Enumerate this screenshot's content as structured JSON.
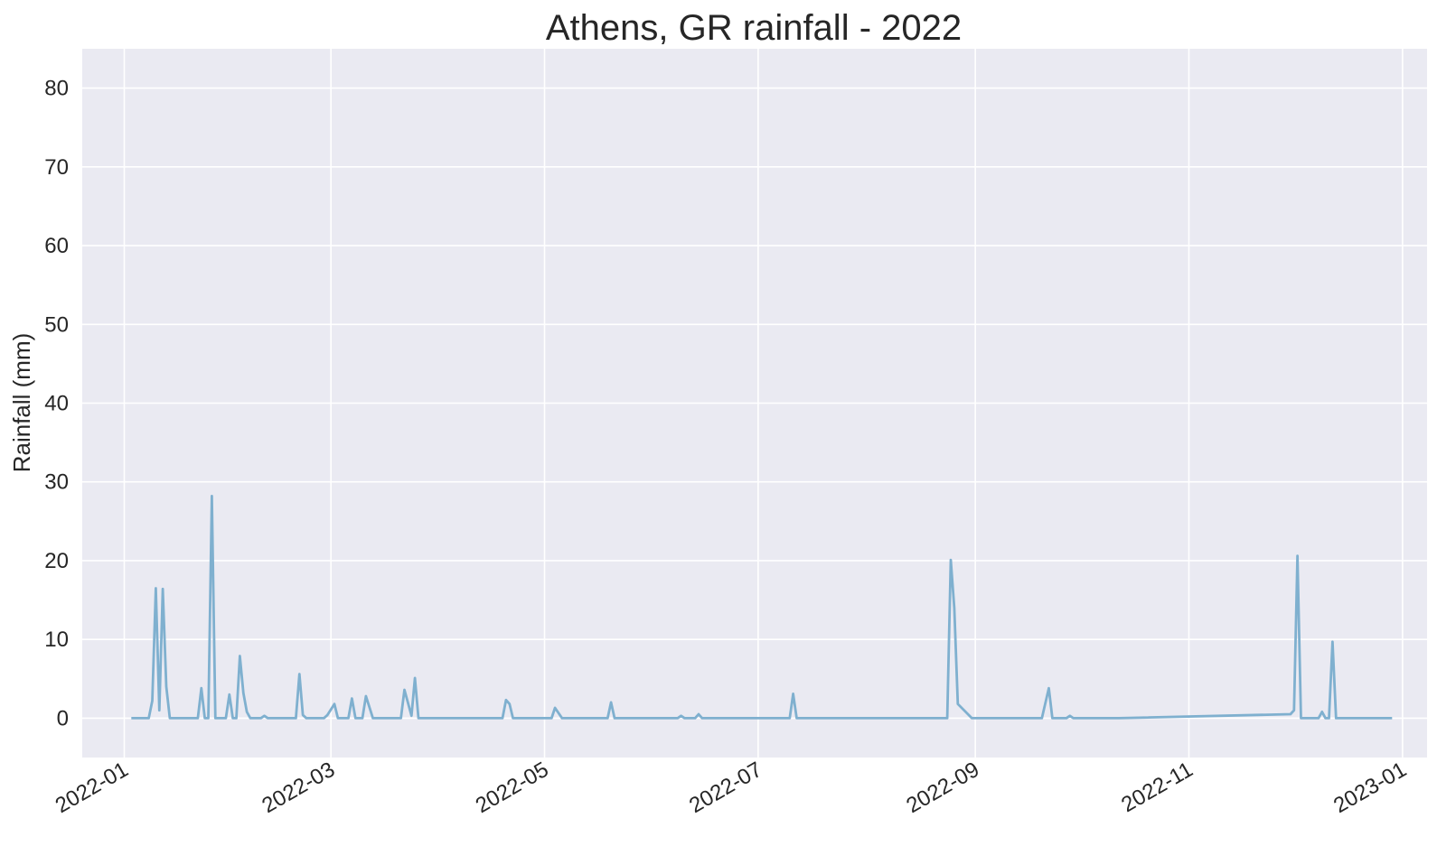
{
  "chart_data": {
    "type": "line",
    "title": "Athens, GR rainfall - 2022",
    "xlabel": "",
    "ylabel": "Rainfall (mm)",
    "xlim": [
      "2021-12-20",
      "2023-01-08"
    ],
    "ylim": [
      -5,
      85
    ],
    "x_ticks": [
      "2022-01",
      "2022-03",
      "2022-05",
      "2022-07",
      "2022-09",
      "2022-11",
      "2023-01"
    ],
    "y_ticks": [
      0,
      10,
      20,
      30,
      40,
      50,
      60,
      70,
      80
    ],
    "grid": true,
    "line_color": "#7fb0cf",
    "background_color": "#eaeaf2",
    "series": [
      {
        "x": [
          "2022-01-03",
          "2022-01-08",
          "2022-01-09",
          "2022-01-10",
          "2022-01-11",
          "2022-01-12",
          "2022-01-13",
          "2022-01-14",
          "2022-01-22",
          "2022-01-23",
          "2022-01-24",
          "2022-01-25",
          "2022-01-26",
          "2022-01-27",
          "2022-01-30",
          "2022-01-31",
          "2022-02-01",
          "2022-02-02",
          "2022-02-03",
          "2022-02-04",
          "2022-02-05",
          "2022-02-06",
          "2022-02-09",
          "2022-02-10",
          "2022-02-11",
          "2022-02-19",
          "2022-02-20",
          "2022-02-21",
          "2022-02-22",
          "2022-02-27",
          "2022-02-28",
          "2022-03-02",
          "2022-03-03",
          "2022-03-06",
          "2022-03-07",
          "2022-03-08",
          "2022-03-10",
          "2022-03-11",
          "2022-03-13",
          "2022-03-21",
          "2022-03-22",
          "2022-03-24",
          "2022-03-25",
          "2022-03-26",
          "2022-04-19",
          "2022-04-20",
          "2022-04-21",
          "2022-04-22",
          "2022-05-03",
          "2022-05-04",
          "2022-05-06",
          "2022-05-19",
          "2022-05-20",
          "2022-05-21",
          "2022-06-08",
          "2022-06-09",
          "2022-06-10",
          "2022-06-13",
          "2022-06-14",
          "2022-06-15",
          "2022-07-10",
          "2022-07-11",
          "2022-07-12",
          "2022-08-24",
          "2022-08-25",
          "2022-08-26",
          "2022-08-27",
          "2022-08-31",
          "2022-09-20",
          "2022-09-22",
          "2022-09-23",
          "2022-09-27",
          "2022-09-28",
          "2022-09-29",
          "2022-10-12",
          "2022-11-30",
          "2022-12-01",
          "2022-12-02",
          "2022-12-03",
          "2022-12-08",
          "2022-12-09",
          "2022-12-10",
          "2022-12-11",
          "2022-12-12",
          "2022-12-13",
          "2022-12-29"
        ],
        "values": [
          0,
          0,
          2.2,
          16.5,
          1,
          16.4,
          4,
          0,
          0,
          3.8,
          0,
          0,
          28.2,
          0,
          0,
          3,
          0,
          0,
          7.9,
          3.2,
          0.8,
          0,
          0,
          0.3,
          0,
          0,
          5.6,
          0.4,
          0,
          0,
          0.4,
          1.8,
          0,
          0,
          2.5,
          0,
          0,
          2.8,
          0,
          0,
          3.6,
          0.3,
          5.1,
          0,
          0,
          2.3,
          1.8,
          0,
          0,
          1.3,
          0,
          0,
          2,
          0,
          0,
          0.3,
          0,
          0,
          0.5,
          0,
          0,
          3.1,
          0,
          0,
          20.1,
          14,
          1.8,
          0,
          0,
          3.8,
          0,
          0,
          0.3,
          0,
          0,
          0.5,
          1,
          20.6,
          0,
          0,
          0.8,
          0,
          0,
          9.7,
          0,
          0
        ]
      }
    ]
  }
}
